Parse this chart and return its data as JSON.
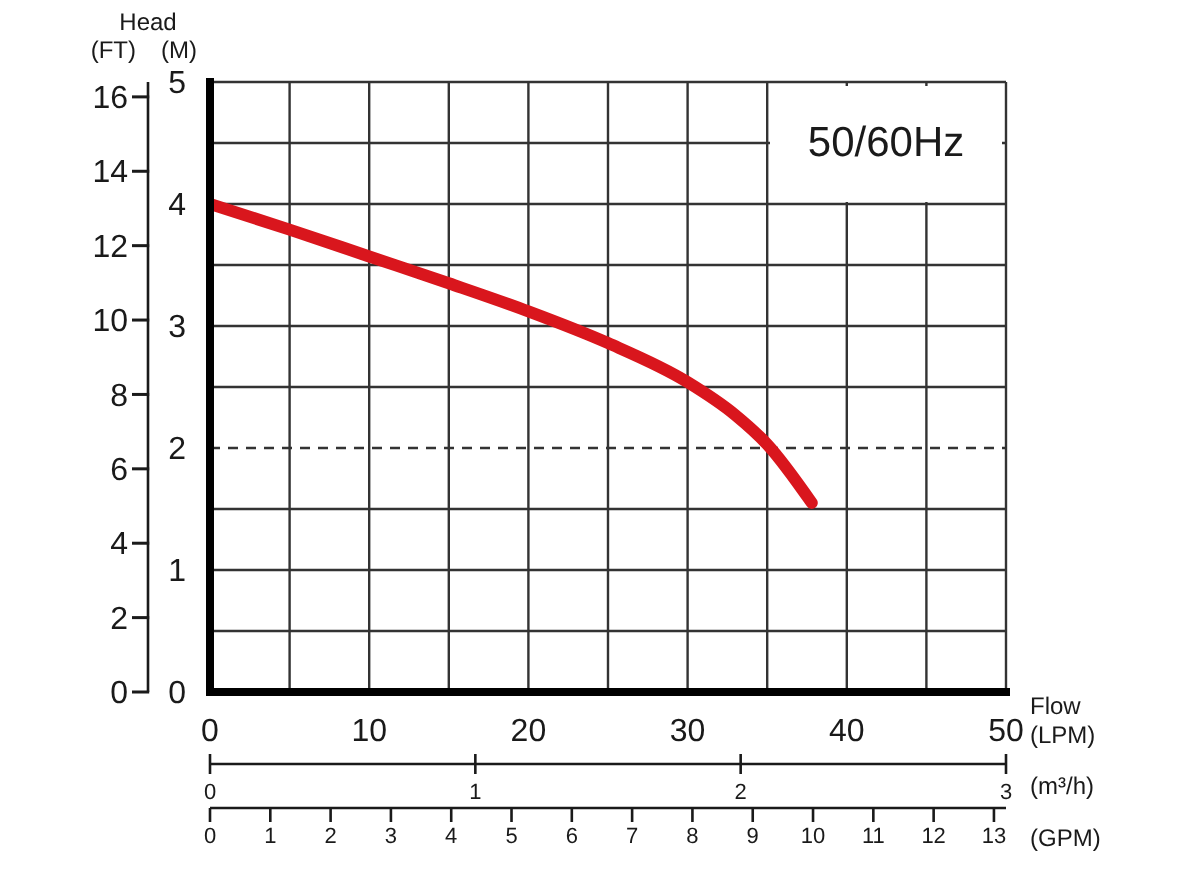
{
  "chart_data": {
    "type": "line",
    "xlabel": "Flow (LPM)",
    "ylabel": "(M)",
    "y2label": "(FT)",
    "x2label": "(GPM)",
    "annotations": [
      "Head",
      "50/60Hz",
      "(m³/h)",
      "0",
      "1",
      "2",
      "3"
    ],
    "x": [
      0,
      5,
      10,
      15,
      20,
      25,
      30,
      33,
      35,
      37.8
    ],
    "series": [
      {
        "color": "#d9161d",
        "values": [
          4.0,
          3.79,
          3.57,
          3.35,
          3.12,
          2.86,
          2.54,
          2.27,
          2.03,
          1.55
        ]
      }
    ],
    "xlim": [
      0,
      50
    ],
    "xticks": [
      0,
      {
        "value": 5,
        "label": null
      },
      10,
      {
        "value": 15,
        "label": null
      },
      20,
      {
        "value": 25,
        "label": null
      },
      30,
      {
        "value": 35,
        "label": null
      },
      40,
      {
        "value": 45,
        "label": null
      },
      50
    ],
    "ylim": [
      0,
      5
    ],
    "yticks": [
      0,
      {
        "value": 0.5,
        "label": null
      },
      1,
      {
        "value": 1.5,
        "label": null
      },
      2,
      {
        "value": 2.5,
        "label": null
      },
      3,
      {
        "value": 3.5,
        "label": null
      },
      4,
      {
        "value": 4.5,
        "label": null
      },
      5
    ],
    "y2lim": [
      0,
      16.4
    ],
    "y2ticks": [
      0,
      2,
      4,
      6,
      8,
      10,
      12,
      14,
      16
    ],
    "x2lim": [
      0,
      13.2
    ],
    "x2ticks": [
      0,
      1,
      2,
      3,
      4,
      5,
      6,
      7,
      8,
      9,
      10,
      11,
      12,
      13
    ],
    "ref_lines": [
      {
        "axis": "y",
        "value": 2,
        "color": "#333333",
        "line_style": "dashed"
      }
    ],
    "grid": true,
    "marker": "none",
    "line_style": "solid"
  }
}
